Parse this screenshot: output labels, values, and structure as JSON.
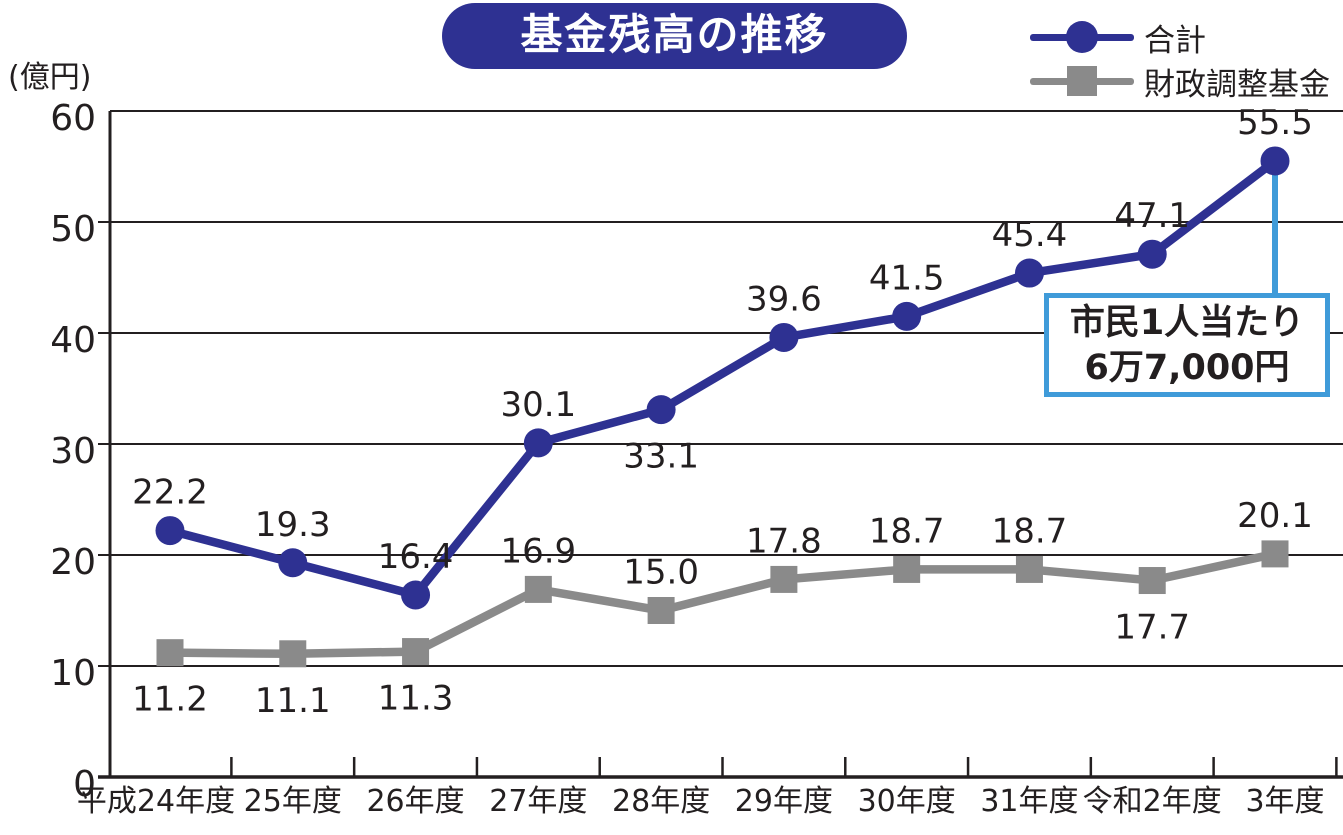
{
  "chart_data": {
    "type": "line",
    "title": "基金残高の推移",
    "ylabel": "(億円)",
    "categories": [
      "平成24年度",
      "25年度",
      "26年度",
      "27年度",
      "28年度",
      "29年度",
      "30年度",
      "31年度",
      "令和2年度",
      "3年度"
    ],
    "series": [
      {
        "name": "合計",
        "color": "#2e3192",
        "marker": "circle",
        "values": [
          22.2,
          19.3,
          16.4,
          30.1,
          33.1,
          39.6,
          41.5,
          45.4,
          47.1,
          55.5
        ],
        "label_pos": [
          "above",
          "above",
          "above",
          "above",
          "below",
          "above",
          "above",
          "above",
          "above",
          "above"
        ]
      },
      {
        "name": "財政調整基金",
        "color": "#8a8a8a",
        "marker": "square",
        "values": [
          11.2,
          11.1,
          11.3,
          16.9,
          15.0,
          17.8,
          18.7,
          18.7,
          17.7,
          20.1
        ],
        "label_pos": [
          "below",
          "below",
          "below",
          "above",
          "above",
          "above",
          "above",
          "above",
          "below",
          "above"
        ]
      }
    ],
    "ylim": [
      0,
      60
    ],
    "yticks": [
      0,
      10,
      20,
      30,
      40,
      50,
      60
    ],
    "grid": "horizontal",
    "legend_position": "top-right",
    "annotation": {
      "lines": [
        "市民1人当たり",
        "6万7,000円"
      ],
      "target_category": "3年度",
      "target_series": "合計",
      "border_color": "#3f9bd9"
    },
    "colors": {
      "axis": "#231f20",
      "total_series": "#2e3192",
      "fund_series": "#8a8a8a",
      "annotation_blue": "#3f9bd9",
      "title_bg": "#2e3192",
      "title_text": "#ffffff"
    }
  }
}
